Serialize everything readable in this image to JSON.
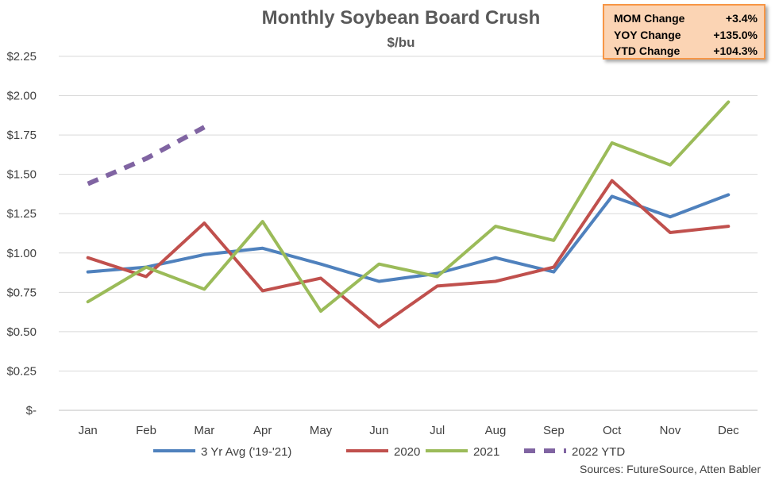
{
  "chart_data": {
    "type": "line",
    "title": "Monthly Soybean Board Crush",
    "subtitle": "$/bu",
    "categories": [
      "Jan",
      "Feb",
      "Mar",
      "Apr",
      "May",
      "Jun",
      "Jul",
      "Aug",
      "Sep",
      "Oct",
      "Nov",
      "Dec"
    ],
    "y_tick_labels": [
      "$-",
      "$0.25",
      "$0.50",
      "$0.75",
      "$1.00",
      "$1.25",
      "$1.50",
      "$1.75",
      "$2.00",
      "$2.25"
    ],
    "ylim": [
      0,
      2.25
    ],
    "grid": "horizontal",
    "legend_position": "bottom",
    "series": [
      {
        "name": "3 Yr Avg ('19-'21)",
        "color": "#4f81bd",
        "dashed": false,
        "values": [
          0.88,
          0.91,
          0.99,
          1.03,
          0.93,
          0.82,
          0.87,
          0.97,
          0.88,
          1.36,
          1.23,
          1.37
        ]
      },
      {
        "name": "2020",
        "color": "#c0504d",
        "dashed": false,
        "values": [
          0.97,
          0.85,
          1.19,
          0.76,
          0.84,
          0.53,
          0.79,
          0.82,
          0.91,
          1.46,
          1.13,
          1.17
        ]
      },
      {
        "name": "2021",
        "color": "#9bbb59",
        "dashed": false,
        "values": [
          0.69,
          0.91,
          0.77,
          1.2,
          0.63,
          0.93,
          0.85,
          1.17,
          1.08,
          1.7,
          1.56,
          1.96
        ]
      },
      {
        "name": "2022 YTD",
        "color": "#8064a2",
        "dashed": true,
        "values": [
          1.44,
          1.6,
          1.8,
          null,
          null,
          null,
          null,
          null,
          null,
          null,
          null,
          null
        ]
      }
    ],
    "source": "Sources: FutureSource, Atten Babler"
  },
  "stats_box": {
    "rows": [
      {
        "label": "MOM Change",
        "value": "+3.4%"
      },
      {
        "label": "YOY Change",
        "value": "+135.0%"
      },
      {
        "label": "YTD Change",
        "value": "+104.3%"
      }
    ]
  }
}
